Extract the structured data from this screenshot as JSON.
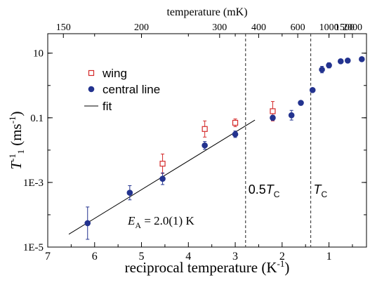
{
  "chart_data": {
    "type": "scatter",
    "xlabel": "reciprocal temperature (K",
    "xlabel_sup": "-1",
    "xlabel_end": ")",
    "ylabel_T": "T",
    "ylabel_sup": "-1",
    "ylabel_sub": "1",
    "ylabel_units": " (ms",
    "ylabel_units_sup": "-1",
    "ylabel_units_end": ")",
    "top_xlabel": "temperature (mK)",
    "x_reversed": true,
    "xlim": [
      7.0,
      0.2
    ],
    "ylim": [
      1e-05,
      40
    ],
    "y_scale": "log",
    "x_ticks": [
      7,
      6,
      5,
      4,
      3,
      2,
      1
    ],
    "x_tick_labels": [
      "7",
      "6",
      "5",
      "4",
      "3",
      "2",
      "1"
    ],
    "y_ticks": [
      1e-05,
      0.001,
      0.1,
      10
    ],
    "y_tick_labels": [
      "1E-5",
      "1E-3",
      "0.1",
      "10"
    ],
    "top_ticks_mK": [
      150,
      200,
      300,
      400,
      600,
      1000,
      1500,
      2000
    ],
    "top_tick_labels": [
      "150",
      "200",
      "300",
      "400",
      "600",
      "1000",
      "1500",
      "2000"
    ],
    "series": [
      {
        "name": "wing",
        "marker": "open-square",
        "color": "#d42a2a",
        "points": [
          {
            "x": 4.55,
            "y": 0.0038,
            "err": 0.3
          },
          {
            "x": 3.65,
            "y": 0.045,
            "err": 0.25
          },
          {
            "x": 3.0,
            "y": 0.07,
            "err": 0.12
          },
          {
            "x": 2.2,
            "y": 0.16,
            "err": 0.3
          }
        ]
      },
      {
        "name": "central line",
        "marker": "filled-circle",
        "color": "#23338f",
        "points": [
          {
            "x": 6.15,
            "y": 5.5e-05,
            "err": 0.5
          },
          {
            "x": 5.25,
            "y": 0.00048,
            "err": 0.22
          },
          {
            "x": 4.55,
            "y": 0.0013,
            "err": 0.18
          },
          {
            "x": 3.65,
            "y": 0.014,
            "err": 0.12
          },
          {
            "x": 3.0,
            "y": 0.031,
            "err": 0.1
          },
          {
            "x": 2.2,
            "y": 0.1,
            "err": 0.08
          },
          {
            "x": 1.8,
            "y": 0.12,
            "err": 0.15
          },
          {
            "x": 1.6,
            "y": 0.29,
            "err": 0.05
          },
          {
            "x": 1.35,
            "y": 0.72,
            "err": 0.05
          },
          {
            "x": 1.15,
            "y": 3.1,
            "err": 0.1
          },
          {
            "x": 1.0,
            "y": 4.2,
            "err": 0.08
          },
          {
            "x": 0.75,
            "y": 5.6,
            "err": 0.05
          },
          {
            "x": 0.6,
            "y": 5.9,
            "err": 0.05
          },
          {
            "x": 0.3,
            "y": 6.5,
            "err": 0.05
          }
        ]
      }
    ],
    "fit": {
      "name": "fit",
      "x": [
        6.55,
        2.58
      ],
      "y": [
        2.5e-05,
        0.085
      ]
    },
    "vlines": [
      {
        "x": 2.78,
        "label_main": "0.5",
        "label_T": "T",
        "label_sub": "C"
      },
      {
        "x": 1.39,
        "label_main": "",
        "label_T": "T",
        "label_sub": "C"
      }
    ],
    "annotation": {
      "main": "E",
      "sub": "A",
      "rest": " = 2.0(1) K"
    },
    "legend_position": "upper-left",
    "grid": false
  }
}
